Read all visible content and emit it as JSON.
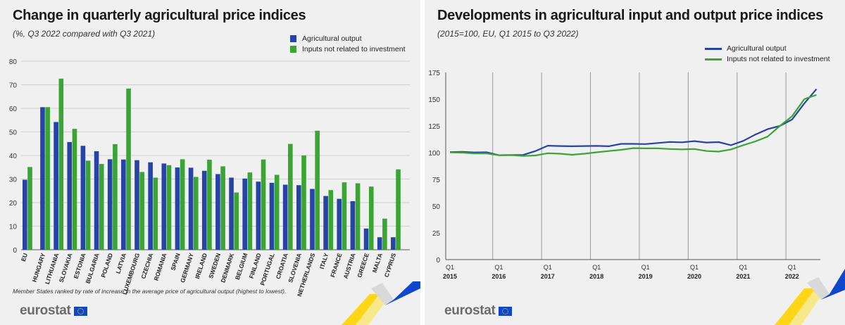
{
  "left": {
    "title": "Change in quarterly agricultural price indices",
    "subtitle": "(%, Q3 2022 compared with Q3 2021)",
    "footnote": "Member States ranked by rate of increase in the average price of agricultural output (highest to lowest).",
    "logo": "eurostat"
  },
  "right": {
    "title": "Developments in agricultural input and output price indices",
    "subtitle": "(2015=100, EU, Q1 2015 to Q3 2022)",
    "logo": "eurostat"
  },
  "colors": {
    "output": "#2644a6",
    "input": "#3aa535",
    "panel_bg": "#f0f0f0",
    "accent_yellow": "#ffd617"
  },
  "chart_data": [
    {
      "type": "bar",
      "categories": [
        "EU",
        "HUNGARY",
        "LITHUANIA",
        "SLOVAKIA",
        "ESTONIA",
        "BULGARIA",
        "POLAND",
        "LATVIA",
        "LUXEMBOURG",
        "CZECHIA",
        "ROMANIA",
        "SPAIN",
        "GERMANY",
        "IRELAND",
        "SWEDEN",
        "DENMARK",
        "BELGIUM",
        "FINLAND",
        "PORTUGAL",
        "CROATIA",
        "SLOVENIA",
        "NETHERLANDS",
        "ITALY",
        "FRANCE",
        "AUSTRIA",
        "GREECE",
        "MALTA",
        "CYPRUS"
      ],
      "series": [
        {
          "name": "Agricultural output",
          "values": [
            29.7,
            60.5,
            54.2,
            45.7,
            44.1,
            41.8,
            38.4,
            38.3,
            38.0,
            37.1,
            36.6,
            34.9,
            34.8,
            33.5,
            32.1,
            30.6,
            30.2,
            28.9,
            28.4,
            27.6,
            27.4,
            25.8,
            22.8,
            21.6,
            20.6,
            9.0,
            5.3,
            5.3
          ]
        },
        {
          "name": "Inputs not related to investment",
          "values": [
            35.1,
            60.5,
            72.6,
            51.3,
            37.8,
            36.4,
            44.8,
            68.4,
            33.0,
            30.6,
            35.9,
            38.4,
            30.9,
            38.2,
            35.4,
            24.3,
            32.8,
            38.3,
            31.8,
            44.9,
            40.0,
            50.5,
            25.3,
            28.6,
            28.2,
            26.8,
            13.2,
            34.1
          ]
        }
      ],
      "ylim": [
        0,
        80
      ],
      "yticks": [
        "0",
        "10",
        "20",
        "30",
        "40",
        "50",
        "60",
        "70",
        "80"
      ],
      "grid": "horizontal",
      "legend": "top-right"
    },
    {
      "type": "line",
      "x": [
        "Q1 2015",
        "Q2 2015",
        "Q3 2015",
        "Q4 2015",
        "Q1 2016",
        "Q2 2016",
        "Q3 2016",
        "Q4 2016",
        "Q1 2017",
        "Q2 2017",
        "Q3 2017",
        "Q4 2017",
        "Q1 2018",
        "Q2 2018",
        "Q3 2018",
        "Q4 2018",
        "Q1 2019",
        "Q2 2019",
        "Q3 2019",
        "Q4 2019",
        "Q1 2020",
        "Q2 2020",
        "Q3 2020",
        "Q4 2020",
        "Q1 2021",
        "Q2 2021",
        "Q3 2021",
        "Q4 2021",
        "Q1 2022",
        "Q2 2022",
        "Q3 2022"
      ],
      "series": [
        {
          "name": "Agricultural output",
          "values": [
            100.5,
            100.8,
            100.2,
            100.3,
            97.6,
            97.8,
            97.9,
            101.5,
            106.5,
            106.2,
            106.0,
            106.2,
            106.3,
            106.0,
            108.2,
            108.2,
            108.0,
            109.0,
            110.0,
            109.7,
            110.8,
            109.5,
            109.9,
            107.0,
            111.0,
            117.0,
            122.0,
            125.0,
            131.0,
            146.0,
            159.5
          ]
        },
        {
          "name": "Inputs not related to investment",
          "values": [
            100.2,
            100.0,
            99.2,
            99.3,
            97.6,
            97.7,
            96.9,
            97.4,
            99.5,
            99.0,
            98.0,
            99.0,
            100.3,
            101.5,
            102.6,
            104.2,
            104.0,
            104.0,
            103.4,
            103.0,
            103.4,
            101.5,
            101.0,
            103.0,
            107.0,
            110.5,
            115.0,
            125.0,
            134.0,
            150.0,
            154.0
          ]
        }
      ],
      "x_tick_labels": [
        {
          "q": "Q1",
          "year": "2015"
        },
        {
          "q": "Q1",
          "year": "2016"
        },
        {
          "q": "Q1",
          "year": "2017"
        },
        {
          "q": "Q1",
          "year": "2018"
        },
        {
          "q": "Q1",
          "year": "2019"
        },
        {
          "q": "Q1",
          "year": "2020"
        },
        {
          "q": "Q1",
          "year": "2021"
        },
        {
          "q": "Q1",
          "year": "2022"
        }
      ],
      "ylim": [
        0,
        175
      ],
      "yticks": [
        "0",
        "25",
        "50",
        "75",
        "100",
        "125",
        "150",
        "175"
      ],
      "grid": "vertical",
      "legend": "top-right"
    }
  ]
}
